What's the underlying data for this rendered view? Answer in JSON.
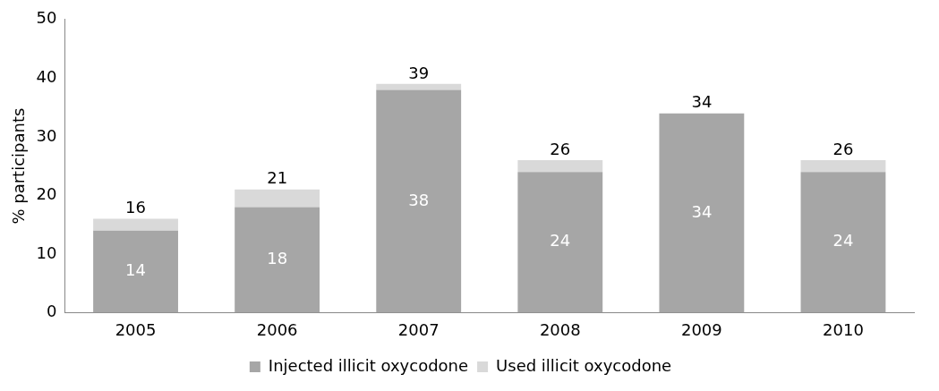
{
  "chart_data": {
    "type": "bar",
    "ylabel": "% participants",
    "categories": [
      "2005",
      "2006",
      "2007",
      "2008",
      "2009",
      "2010"
    ],
    "series": [
      {
        "name": "Injected illicit oxycodone",
        "color": "#a6a6a6",
        "values": [
          14,
          18,
          38,
          24,
          34,
          24
        ],
        "value_labels": [
          "14",
          "18",
          "38",
          "24",
          "34",
          "24"
        ]
      },
      {
        "name": "Used illicit oxycodone",
        "color": "#d9d9d9",
        "values": [
          2,
          3,
          1,
          2,
          0,
          2
        ]
      }
    ],
    "stacked": true,
    "totals": [
      "16",
      "21",
      "39",
      "26",
      "34",
      "26"
    ],
    "ylim": [
      0,
      50
    ],
    "yticks": [
      0,
      10,
      20,
      30,
      40,
      50
    ],
    "grid": false,
    "legend": "bottom"
  }
}
